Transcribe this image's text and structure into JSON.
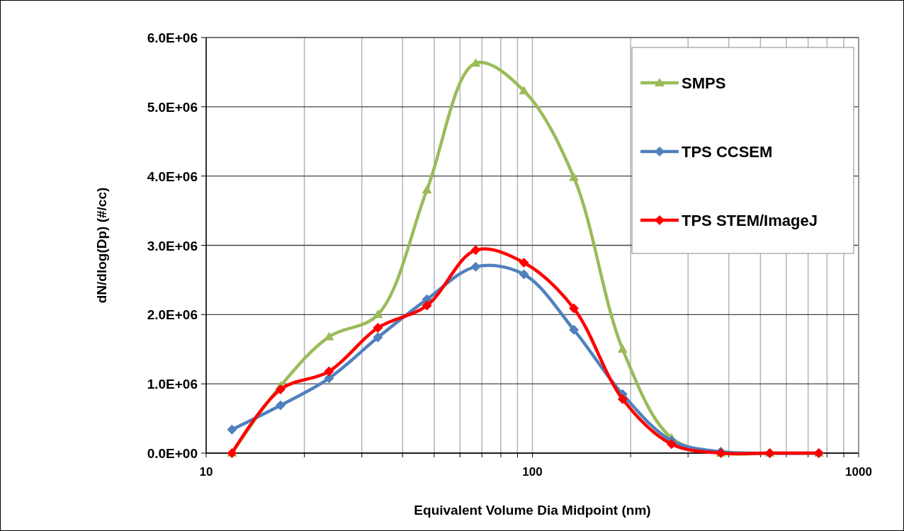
{
  "chart_data": {
    "type": "line",
    "xlabel": "Equivalent Volume Dia Midpoint (nm)",
    "ylabel": "dN/dlog(Dp) (#/cc)",
    "x": [
      12,
      16.9,
      23.8,
      33.6,
      47.5,
      67,
      94.2,
      134,
      189,
      267,
      378,
      534,
      755
    ],
    "series": [
      {
        "name": "SMPS",
        "color": "#9bbb59",
        "marker": "triangle",
        "values": [
          0,
          970000,
          1680000,
          2000000,
          3800000,
          5630000,
          5230000,
          3980000,
          1500000,
          220000,
          0,
          0,
          0
        ]
      },
      {
        "name": "TPS CCSEM",
        "color": "#4f81bd",
        "marker": "diamond",
        "values": [
          340000,
          690000,
          1080000,
          1670000,
          2220000,
          2690000,
          2580000,
          1780000,
          850000,
          180000,
          20000,
          0,
          0
        ]
      },
      {
        "name": "TPS STEM/ImageJ",
        "color": "#ff0000",
        "marker": "diamond",
        "values": [
          0,
          920000,
          1180000,
          1810000,
          2130000,
          2930000,
          2750000,
          2090000,
          780000,
          130000,
          0,
          0,
          0
        ]
      }
    ],
    "log": "x",
    "xlim": [
      10,
      1000
    ],
    "xticks": [
      10,
      {
        "value": 20,
        "label": null
      },
      {
        "value": 30,
        "label": null
      },
      {
        "value": 40,
        "label": null
      },
      {
        "value": 50,
        "label": null
      },
      {
        "value": 60,
        "label": null
      },
      {
        "value": 70,
        "label": null
      },
      {
        "value": 80,
        "label": null
      },
      {
        "value": 90,
        "label": null
      },
      100,
      {
        "value": 200,
        "label": null
      },
      {
        "value": 300,
        "label": null
      },
      {
        "value": 400,
        "label": null
      },
      {
        "value": 500,
        "label": null
      },
      {
        "value": 600,
        "label": null
      },
      {
        "value": 700,
        "label": null
      },
      {
        "value": 800,
        "label": null
      },
      {
        "value": 900,
        "label": null
      },
      1000
    ],
    "ylim": [
      0,
      6000000
    ],
    "yticks": [
      {
        "value": 0,
        "label": "0.0E+00"
      },
      {
        "value": 1000000,
        "label": "1.0E+06"
      },
      {
        "value": 2000000,
        "label": "2.0E+06"
      },
      {
        "value": 3000000,
        "label": "3.0E+06"
      },
      {
        "value": 4000000,
        "label": "4.0E+06"
      },
      {
        "value": 5000000,
        "label": "5.0E+06"
      },
      {
        "value": 6000000,
        "label": "6.0E+06"
      }
    ],
    "grid": true,
    "legend": "top right",
    "line_style": "solid"
  }
}
